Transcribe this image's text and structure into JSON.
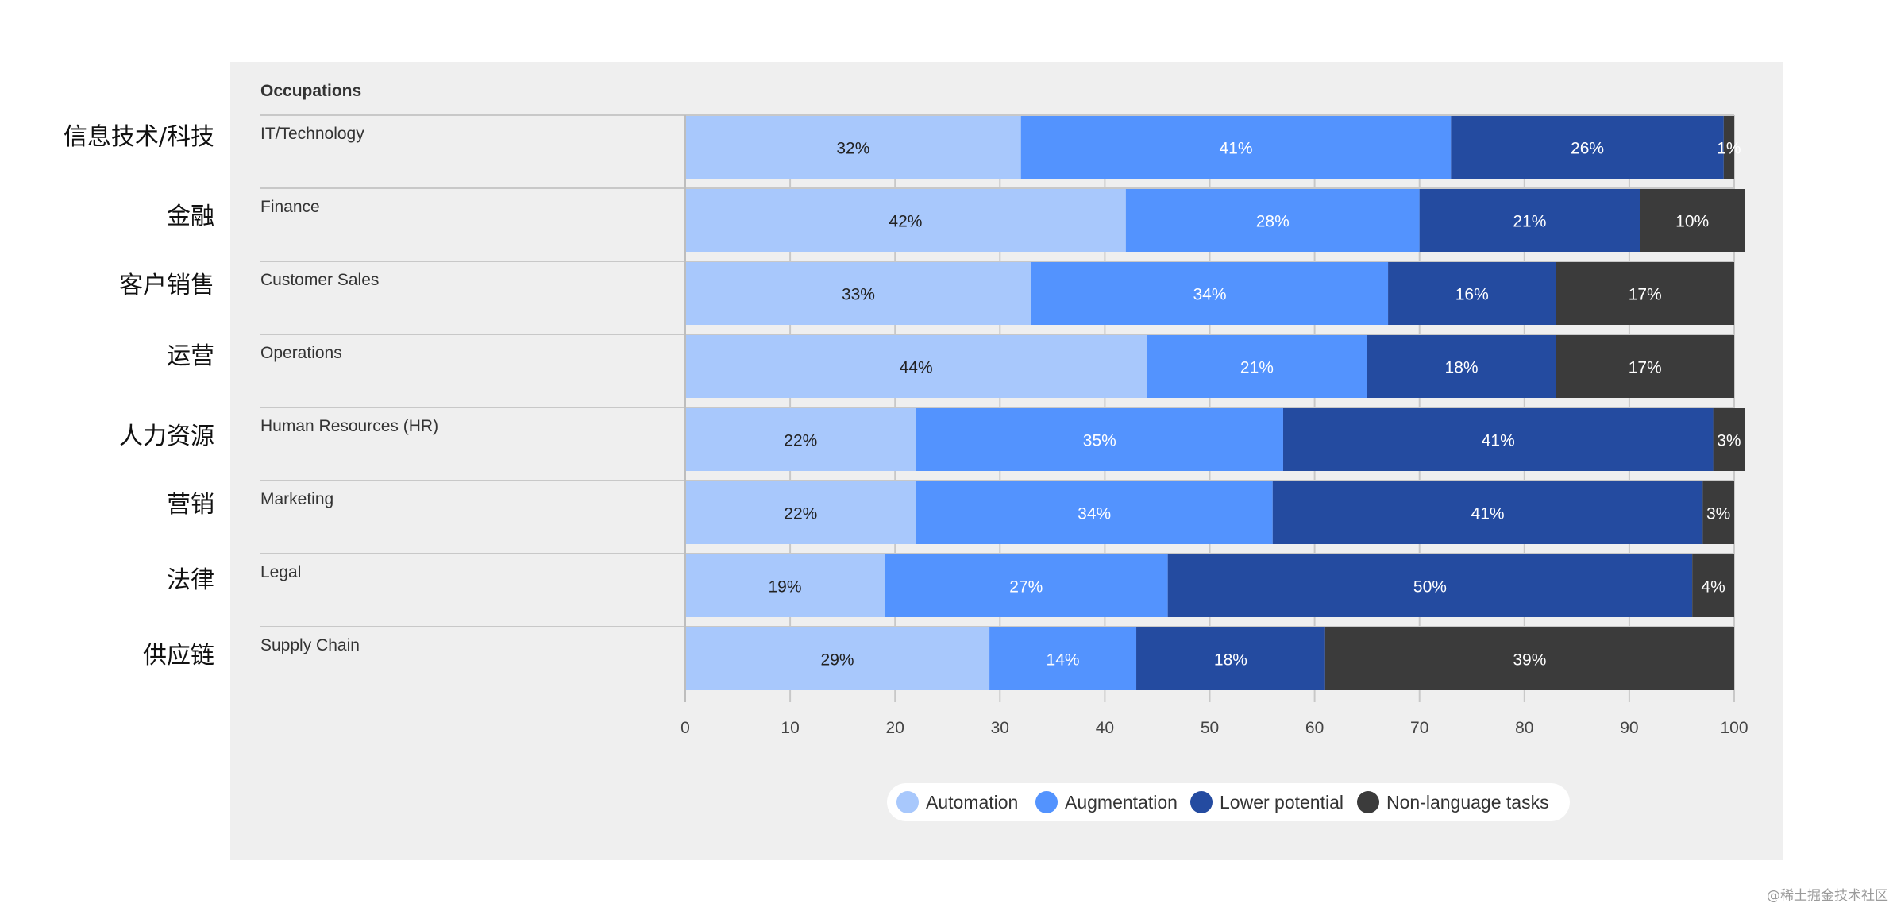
{
  "chinese_labels": [
    "信息技术/科技",
    "金融",
    "客户销售",
    "运营",
    "人力资源",
    "营销",
    "法律",
    "供应链"
  ],
  "watermark": "@稀土掘金技术社区",
  "chart_data": {
    "type": "bar",
    "orientation": "horizontal",
    "stacked": true,
    "title": "Occupations",
    "categories": [
      "IT/Technology",
      "Finance",
      "Customer Sales",
      "Operations",
      "Human Resources (HR)",
      "Marketing",
      "Legal",
      "Supply Chain"
    ],
    "series": [
      {
        "name": "Automation",
        "color": "#a8c8fc",
        "text_color": "#222222",
        "values": [
          32,
          42,
          33,
          44,
          22,
          22,
          19,
          29
        ]
      },
      {
        "name": "Augmentation",
        "color": "#5393fe",
        "text_color": "#ffffff",
        "values": [
          41,
          28,
          34,
          21,
          35,
          34,
          27,
          14
        ]
      },
      {
        "name": "Lower potential",
        "color": "#244ba0",
        "text_color": "#ffffff",
        "values": [
          26,
          21,
          16,
          18,
          41,
          41,
          50,
          18
        ]
      },
      {
        "name": "Non-language tasks",
        "color": "#3b3b3b",
        "text_color": "#ffffff",
        "values": [
          1,
          10,
          17,
          17,
          3,
          3,
          4,
          39
        ]
      }
    ],
    "xlim": [
      0,
      100
    ],
    "xticks": [
      0,
      10,
      20,
      30,
      40,
      50,
      60,
      70,
      80,
      90,
      100
    ],
    "xlabel": "",
    "ylabel": "",
    "grid": true,
    "legend_position": "bottom-center"
  }
}
